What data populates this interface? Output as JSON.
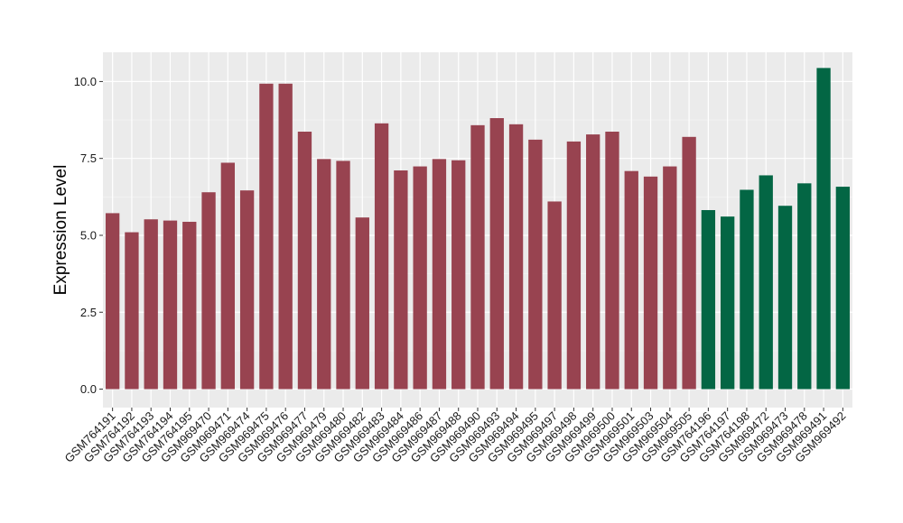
{
  "chart_data": {
    "type": "bar",
    "title": "",
    "xlabel": "",
    "ylabel": "Expression Level",
    "ylim": [
      -0.6,
      10.95
    ],
    "yticks": [
      "0.0",
      "2.5",
      "5.0",
      "7.5",
      "10.0"
    ],
    "grid": true,
    "panel_background": "#ebebeb",
    "categories": [
      "GSM764191",
      "GSM764192",
      "GSM764193",
      "GSM764194",
      "GSM764195",
      "GSM969470",
      "GSM969471",
      "GSM969474",
      "GSM969475",
      "GSM969476",
      "GSM969477",
      "GSM969479",
      "GSM969480",
      "GSM969482",
      "GSM969483",
      "GSM969484",
      "GSM969486",
      "GSM969487",
      "GSM969488",
      "GSM969490",
      "GSM969493",
      "GSM969494",
      "GSM969495",
      "GSM969497",
      "GSM969498",
      "GSM969499",
      "GSM969500",
      "GSM969501",
      "GSM969503",
      "GSM969504",
      "GSM969505",
      "GSM764196",
      "GSM764197",
      "GSM764198",
      "GSM969472",
      "GSM969473",
      "GSM969478",
      "GSM969491",
      "GSM969492"
    ],
    "values": [
      5.72,
      5.1,
      5.52,
      5.48,
      5.44,
      6.4,
      7.36,
      6.46,
      9.93,
      9.93,
      8.37,
      7.48,
      7.42,
      5.58,
      8.64,
      7.11,
      7.24,
      7.48,
      7.44,
      8.58,
      8.81,
      8.61,
      8.11,
      6.1,
      8.05,
      8.28,
      8.37,
      7.09,
      6.91,
      7.24,
      8.2,
      5.82,
      5.61,
      6.48,
      6.95,
      5.96,
      6.69,
      10.44,
      6.58
    ],
    "group_sizes": [
      31,
      8
    ],
    "colors": [
      "#984350",
      "#036644"
    ]
  }
}
